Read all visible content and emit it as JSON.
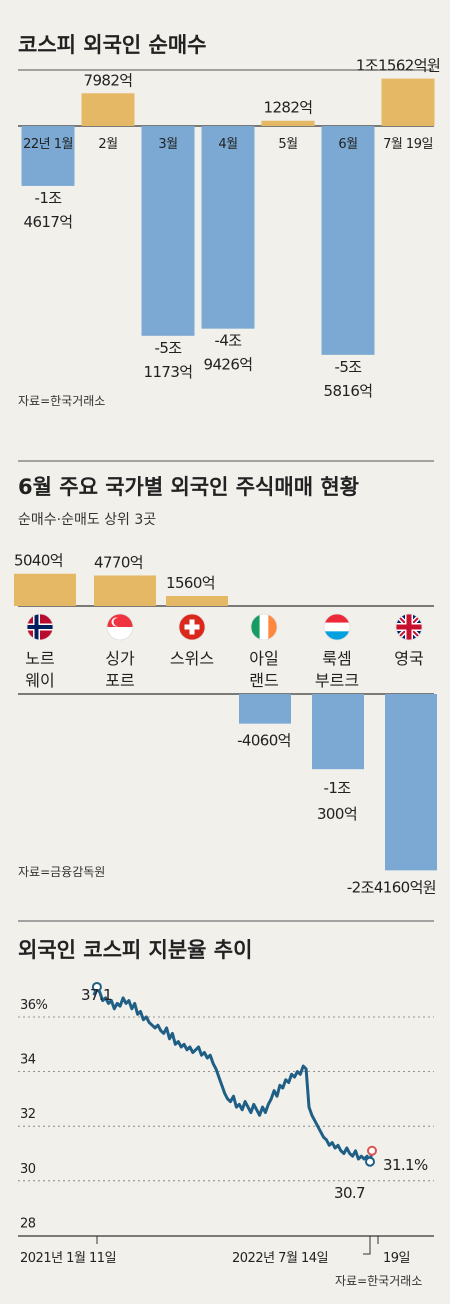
{
  "colors": {
    "background": "#f2f0eb",
    "positive": "#e5b865",
    "negative": "#7ba9d3",
    "line": "#1f5f86",
    "marker_end": "#d9534f"
  },
  "chart_data": [
    {
      "type": "bar",
      "title": "코스피 외국인 순매수",
      "unit": "억 원",
      "categories": [
        "22년 1월",
        "2월",
        "3월",
        "4월",
        "5월",
        "6월",
        "7월 19일"
      ],
      "values": [
        -14617,
        7982,
        -51173,
        -49426,
        1282,
        -55816,
        11562
      ],
      "value_labels": [
        [
          "-1조",
          "4617억"
        ],
        [
          "7982억"
        ],
        [
          "-5조",
          "1173억"
        ],
        [
          "-4조",
          "9426억"
        ],
        [
          "1282억"
        ],
        [
          "-5조",
          "5816억"
        ],
        [
          "1조1562억원"
        ]
      ],
      "source": "자료=한국거래소"
    },
    {
      "type": "bar",
      "title": "6월 주요 국가별 외국인 주식매매 현황",
      "subtitle": "순매수·순매도 상위 3곳",
      "unit": "억 원",
      "categories": [
        "노르웨이",
        "싱가포르",
        "스위스",
        "아일랜드",
        "룩셈부르크",
        "영국"
      ],
      "category_lines": [
        [
          "노르",
          "웨이"
        ],
        [
          "싱가",
          "포르"
        ],
        [
          "스위스"
        ],
        [
          "아일",
          "랜드"
        ],
        [
          "룩셈",
          "부르크"
        ],
        [
          "영국"
        ]
      ],
      "flags": [
        "norway-flag-icon",
        "singapore-flag-icon",
        "switzerland-flag-icon",
        "ireland-flag-icon",
        "luxembourg-flag-icon",
        "uk-flag-icon"
      ],
      "values": [
        5040,
        4770,
        1560,
        -4060,
        -10300,
        -24160
      ],
      "value_labels": [
        [
          "5040억"
        ],
        [
          "4770억"
        ],
        [
          "1560억"
        ],
        [
          "-4060억"
        ],
        [
          "-1조",
          "300억"
        ],
        [
          "-2조4160억원"
        ]
      ],
      "source": "자료=금융감독원"
    },
    {
      "type": "line",
      "title": "외국인 코스피 지분율 추이",
      "unit": "%",
      "x_labels": [
        "2021년 1월 11일",
        "2022년 7월 14일",
        "19일"
      ],
      "y_ticks": [
        "36%",
        "34",
        "32",
        "30",
        "28"
      ],
      "ylim": [
        28,
        37.6
      ],
      "series": [
        {
          "values": [
            36.8,
            37.1,
            36.9,
            36.6,
            36.7,
            36.5,
            36.6,
            36.3,
            36.5,
            36.4,
            36.7,
            36.5,
            36.6,
            36.3,
            36.5,
            36.1,
            36.2,
            35.9,
            36.0,
            35.8,
            35.7,
            35.6,
            35.7,
            35.5,
            35.4,
            35.6,
            35.2,
            35.4,
            35.0,
            35.1,
            34.9,
            35.0,
            34.8,
            34.9,
            34.7,
            34.8,
            34.9,
            34.6,
            34.7,
            34.5,
            34.6,
            34.3,
            34.1,
            33.8,
            33.5,
            33.2,
            33.0,
            32.9,
            33.1,
            32.7,
            32.8,
            32.6,
            32.9,
            32.7,
            32.5,
            32.8,
            32.6,
            32.4,
            32.7,
            32.5,
            32.8,
            33.0,
            33.3,
            33.1,
            33.5,
            33.4,
            33.7,
            33.6,
            33.9,
            33.8,
            34.0,
            33.9,
            34.2,
            34.1,
            32.7,
            32.4,
            32.2,
            32.0,
            31.8,
            31.6,
            31.5,
            31.3,
            31.4,
            31.2,
            31.3,
            31.1,
            31.0,
            31.2,
            31.0,
            30.9,
            31.1,
            30.8,
            30.9,
            30.8,
            30.9,
            30.7,
            31.1
          ],
          "start_label": "37.1",
          "min_label": "30.7",
          "end_label": "31.1%"
        }
      ],
      "source": "자료=한국거래소"
    }
  ]
}
